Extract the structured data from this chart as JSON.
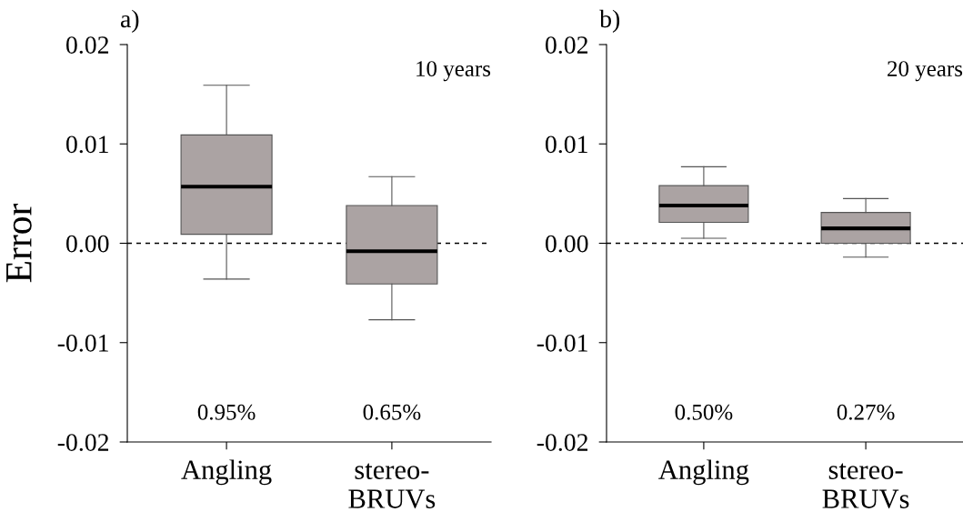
{
  "chart_data": [
    {
      "type": "box",
      "title": "a)",
      "ylabel": "Error",
      "categories": [
        "Angling",
        "stereo-\nBRUVs"
      ],
      "color": "#aba3a3",
      "boxes": [
        {
          "low": -0.0036,
          "q1": 0.0009,
          "median": 0.0057,
          "q3": 0.0109,
          "high": 0.0159
        },
        {
          "low": -0.0077,
          "q1": -0.0041,
          "median": -0.0008,
          "q3": 0.0038,
          "high": 0.0067
        }
      ],
      "ylim": [
        -0.02,
        0.02
      ],
      "yticks": [
        {
          "value": -0.02,
          "label": "-0.02"
        },
        {
          "value": -0.01,
          "label": "-0.01"
        },
        {
          "value": 0,
          "label": "0.00"
        },
        {
          "value": 0.01,
          "label": "0.01"
        },
        {
          "value": 0.02,
          "label": "0.02"
        }
      ],
      "ref_lines": [
        {
          "axis": "y",
          "value": 0,
          "line_style": "dotted",
          "color": "#000000"
        }
      ],
      "annotations": [
        "10 years",
        "0.95%",
        "0.65%"
      ]
    },
    {
      "type": "box",
      "title": "b)",
      "categories": [
        "Angling",
        "stereo-\nBRUVs"
      ],
      "color": "#aba3a3",
      "boxes": [
        {
          "low": 0.0005,
          "q1": 0.0021,
          "median": 0.0038,
          "q3": 0.0058,
          "high": 0.0077
        },
        {
          "low": -0.0014,
          "q1": 0.0,
          "median": 0.0015,
          "q3": 0.0031,
          "high": 0.0045
        }
      ],
      "ylim": [
        -0.02,
        0.02
      ],
      "yticks": [
        {
          "value": -0.02,
          "label": "-0.02"
        },
        {
          "value": -0.01,
          "label": "-0.01"
        },
        {
          "value": 0,
          "label": "0.00"
        },
        {
          "value": 0.01,
          "label": "0.01"
        },
        {
          "value": 0.02,
          "label": "0.02"
        }
      ],
      "ref_lines": [
        {
          "axis": "y",
          "value": 0,
          "line_style": "dotted",
          "color": "#000000"
        }
      ],
      "annotations": [
        "20 years",
        "0.50%",
        "0.27%"
      ]
    }
  ]
}
